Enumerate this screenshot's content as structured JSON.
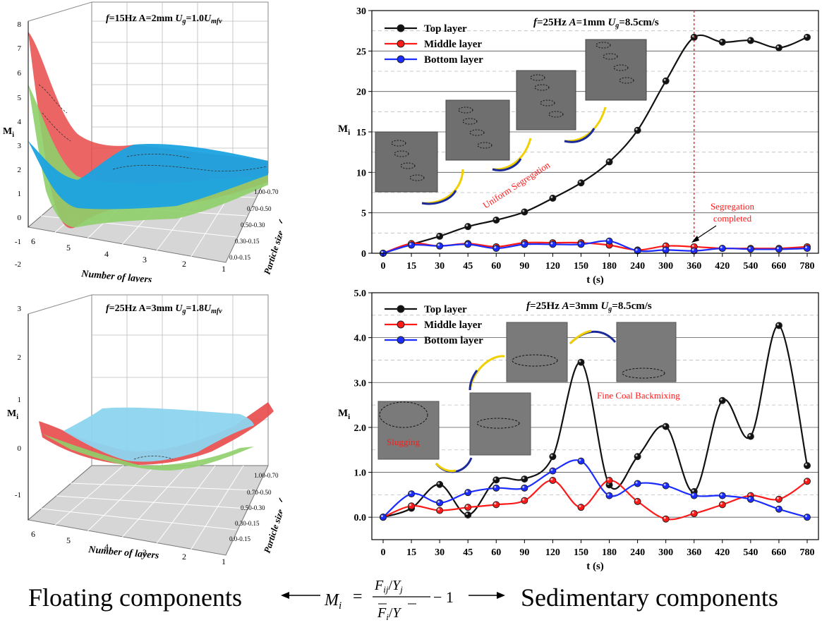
{
  "left_top": {
    "title_parts": {
      "f": "f",
      "rest1": "=15Hz A=2mm ",
      "U": "U",
      "sub": "g",
      "rest2": "=1.0",
      "U2": "U",
      "sub2": "mfv"
    },
    "zlabel_main": "M",
    "zlabel_sub": "i",
    "zticks": [
      "8",
      "7",
      "6",
      "5",
      "4",
      "3",
      "2",
      "1",
      "0",
      "-1",
      "-2"
    ],
    "xticks": [
      "6",
      "5",
      "4",
      "3",
      "2",
      "1"
    ],
    "xlabel": "Number of layers",
    "yticks": [
      "1.00-0.70",
      "0.70-0.50",
      "0.50-0.30",
      "0.30-0.15",
      "0.0-0.15"
    ],
    "ylabel": "Particle size（mm）",
    "colors": {
      "top": "#e84a4a",
      "middle": "#8fcf6a",
      "bottom": "#1ba3e0"
    }
  },
  "left_bottom": {
    "title_parts": {
      "f": "f",
      "rest1": "=25Hz A=3mm ",
      "U": "U",
      "sub": "g",
      "rest2": "=1.8",
      "U2": "U",
      "sub2": "mfv"
    },
    "zlabel_main": "M",
    "zlabel_sub": "i",
    "zticks": [
      "3",
      "2",
      "1",
      "0",
      "-1"
    ],
    "xticks": [
      "6",
      "5",
      "4",
      "3",
      "2",
      "1"
    ],
    "xlabel": "Number of layers",
    "yticks": [
      "1.00-0.70",
      "0.70-0.50",
      "0.50-0.30",
      "0.30-0.15",
      "0.0-0.15"
    ],
    "ylabel": "Particle size（mm）",
    "colors": {
      "top": "#e84a4a",
      "middle": "#8fcf6a",
      "bottom": "#7fd0ec"
    }
  },
  "chart_data": [
    {
      "type": "line",
      "title": "f=25Hz A=1mm Ug=8.5cm/s",
      "xlabel": "t (s)",
      "ylabel": "Mi",
      "categories": [
        "0",
        "15",
        "30",
        "45",
        "60",
        "90",
        "120",
        "150",
        "180",
        "240",
        "300",
        "360",
        "420",
        "540",
        "660",
        "780"
      ],
      "ylim": [
        0,
        30
      ],
      "yticks": [
        "0",
        "5",
        "10",
        "15",
        "20",
        "25",
        "30"
      ],
      "series": [
        {
          "name": "Top layer",
          "color": "#111111",
          "values": [
            0,
            1.1,
            2.1,
            3.3,
            4.1,
            5.1,
            6.8,
            8.7,
            11.3,
            15.2,
            21.3,
            26.7,
            26.1,
            26.3,
            25.4,
            26.7
          ]
        },
        {
          "name": "Middle layer",
          "color": "#ff1a1a",
          "values": [
            0,
            1.2,
            0.9,
            1.2,
            0.8,
            1.3,
            1.3,
            1.3,
            1.0,
            0.4,
            0.9,
            0.8,
            0.6,
            0.6,
            0.6,
            0.8
          ]
        },
        {
          "name": "Bottom layer",
          "color": "#1a2cff",
          "values": [
            0,
            1.0,
            0.9,
            1.1,
            0.6,
            1.1,
            1.1,
            1.1,
            1.5,
            0.3,
            0.4,
            0.3,
            0.6,
            0.5,
            0.5,
            0.6
          ]
        }
      ],
      "annotations": {
        "uniform": "Uniform Segregation",
        "seg1": "Segregation",
        "seg2": "completed"
      },
      "vline_category": "360"
    },
    {
      "type": "line",
      "title": "f=25Hz A=3mm Ug=8.5cm/s",
      "xlabel": "t (s)",
      "ylabel": "Mi",
      "categories": [
        "0",
        "15",
        "30",
        "45",
        "60",
        "90",
        "120",
        "150",
        "180",
        "240",
        "300",
        "360",
        "420",
        "540",
        "660",
        "780"
      ],
      "ylim": [
        -0.5,
        5.0
      ],
      "yticks": [
        "0.0",
        "1.0",
        "2.0",
        "3.0",
        "4.0",
        "5.0"
      ],
      "series": [
        {
          "name": "Top layer",
          "color": "#111111",
          "values": [
            0,
            0.2,
            0.73,
            0.05,
            0.83,
            0.85,
            1.35,
            3.45,
            0.72,
            1.35,
            2.02,
            0.57,
            2.6,
            1.8,
            4.27,
            1.15
          ]
        },
        {
          "name": "Middle layer",
          "color": "#ff1a1a",
          "values": [
            0,
            0.25,
            0.15,
            0.22,
            0.28,
            0.37,
            0.82,
            0.22,
            0.82,
            0.35,
            -0.04,
            0.08,
            0.28,
            0.48,
            0.4,
            0.8
          ]
        },
        {
          "name": "Bottom layer",
          "color": "#1a2cff",
          "values": [
            0,
            0.52,
            0.32,
            0.55,
            0.65,
            0.65,
            1.03,
            1.25,
            0.48,
            0.75,
            0.7,
            0.48,
            0.48,
            0.4,
            0.18,
            0.0
          ]
        }
      ],
      "annotations": {
        "slugging": "Slugging",
        "backmix": "Fine Coal Backmixing"
      }
    }
  ],
  "formula": {
    "left_text": "Floating components",
    "right_text": "Sedimentary components",
    "lhs": "M",
    "lhs_sub": "i",
    "equals": "=",
    "num_F": "F",
    "num_sub": "ij",
    "num_slash": "/",
    "num_Y": "Y",
    "num_Ysub": "j",
    "den_F": "F",
    "den_sub": "i",
    "den_slash": "/",
    "den_Y": "Y",
    "minus_one": "− 1"
  }
}
